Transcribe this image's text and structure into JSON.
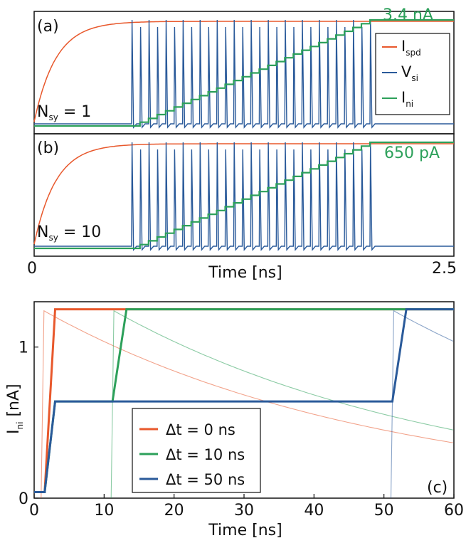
{
  "chart_data": [
    {
      "panel": "(a)",
      "type": "line",
      "annotation": "N_sy = 1",
      "annotation_main": "N",
      "annotation_sub": "sy",
      "annotation_rest": " = 1",
      "final_current_label": "3.4 nA",
      "x_ticks": [
        "0",
        "2.5"
      ],
      "xlim": [
        0,
        2.5
      ],
      "xlabel": "Time [ns]",
      "legend": {
        "placement": "right",
        "entries": [
          {
            "main": "I",
            "sub": "spd",
            "color": "#e8582c"
          },
          {
            "main": "V",
            "sub": "si",
            "color": "#2a5a9a"
          },
          {
            "main": "I",
            "sub": "ni",
            "color": "#2ca05a"
          }
        ]
      },
      "series": [
        {
          "name": "I_spd",
          "color": "#e8582c",
          "description": "rises from 0 to ~0.95 of max by ~0.6 ns, then flat"
        },
        {
          "name": "V_si",
          "color": "#2a5a9a",
          "spike_start": 0.58,
          "spike_end": 2.0
        },
        {
          "name": "I_ni",
          "color": "#2ca05a",
          "start": 0.58,
          "end": 2.0,
          "steps": 28,
          "final": 3.4
        }
      ]
    },
    {
      "panel": "(b)",
      "type": "line",
      "annotation": "N_sy = 10",
      "annotation_main": "N",
      "annotation_sub": "sy",
      "annotation_rest": " = 10",
      "final_current_label": "650 pA",
      "x_ticks": [
        "0",
        "2.5"
      ],
      "xlim": [
        0,
        2.5
      ],
      "xlabel": "Time [ns]"
    },
    {
      "panel": "(c)",
      "type": "line",
      "xlabel": "Time [ns]",
      "ylabel": "I_ni [nA]",
      "ylabel_main": "I",
      "ylabel_sub": "ni",
      "ylabel_rest": " [nA]",
      "xlim": [
        0,
        60
      ],
      "ylim": [
        0,
        1.3
      ],
      "x_ticks": [
        0,
        10,
        20,
        30,
        40,
        50,
        60
      ],
      "y_ticks": [
        0,
        1
      ],
      "legend": {
        "placement": "center-left",
        "entries": [
          {
            "label": "Δt = 0 ns",
            "color": "#e8582c"
          },
          {
            "label": "Δt = 10 ns",
            "color": "#2ca05a"
          },
          {
            "label": "Δt = 50 ns",
            "color": "#2a5a9a"
          }
        ]
      },
      "series": [
        {
          "name": "Δt = 0 ns",
          "color": "#e8582c",
          "x": [
            0,
            1.5,
            3,
            60
          ],
          "y": [
            0.04,
            0.04,
            1.25,
            1.25
          ]
        },
        {
          "name": "Δt = 10 ns",
          "color": "#2ca05a",
          "x": [
            0,
            1.5,
            3,
            11.2,
            13.2,
            60
          ],
          "y": [
            0.04,
            0.04,
            0.64,
            0.64,
            1.25,
            1.25
          ]
        },
        {
          "name": "Δt = 50 ns",
          "color": "#2a5a9a",
          "x": [
            0,
            1.5,
            3,
            51.2,
            53.2,
            60
          ],
          "y": [
            0.04,
            0.04,
            0.64,
            0.64,
            1.25,
            1.25
          ]
        }
      ],
      "faint_series": [
        {
          "color": "#e8582c",
          "t0": 1.0,
          "peak": 1.24,
          "tau": 60
        },
        {
          "color": "#2ca05a",
          "t0": 11.0,
          "peak": 1.24,
          "tau": 60
        },
        {
          "color": "#2a5a9a",
          "t0": 51.0,
          "peak": 1.24,
          "tau": 60
        }
      ],
      "panel_label": "(c)"
    }
  ]
}
